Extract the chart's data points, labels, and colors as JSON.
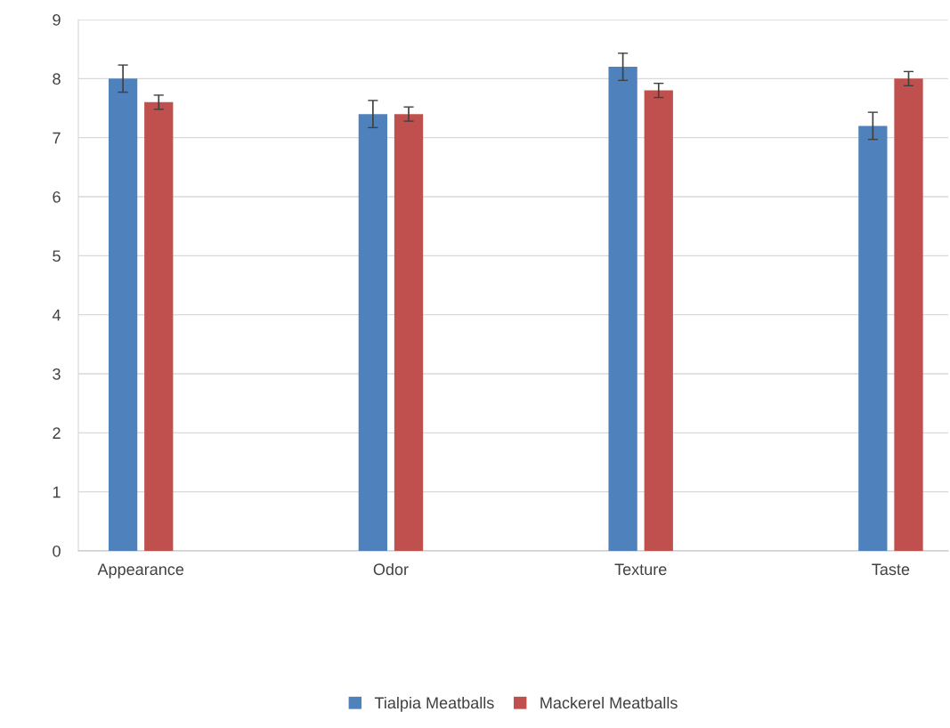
{
  "chart_data": {
    "type": "bar",
    "categories": [
      "Appearance",
      "Odor",
      "Texture",
      "Taste"
    ],
    "series": [
      {
        "name": "Tialpia Meatballs",
        "color": "#4f81bd",
        "values": [
          8.0,
          7.4,
          8.2,
          7.2
        ],
        "errors": [
          0.23,
          0.23,
          0.23,
          0.23
        ]
      },
      {
        "name": "Mackerel Meatballs",
        "color": "#c0504d",
        "values": [
          7.6,
          7.4,
          7.8,
          8.0
        ],
        "errors": [
          0.12,
          0.12,
          0.12,
          0.12
        ]
      }
    ],
    "ylim": [
      0,
      9
    ],
    "yticks": [
      0,
      1,
      2,
      3,
      4,
      5,
      6,
      7,
      8,
      9
    ],
    "grid": "y",
    "legend": "bottom"
  }
}
